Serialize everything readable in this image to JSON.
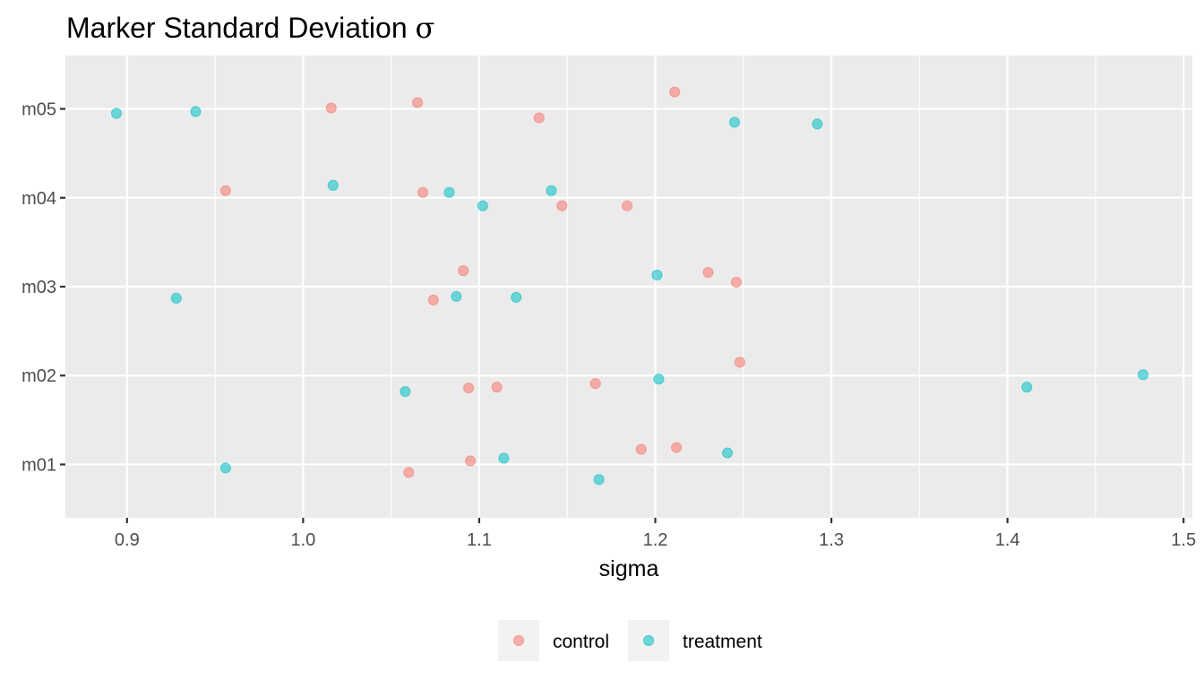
{
  "chart_data": {
    "type": "scatter",
    "title": "Marker Standard Deviation σ",
    "xlabel": "sigma",
    "ylabel": "",
    "xlim": [
      0.865,
      1.505
    ],
    "x_ticks": [
      "0.9",
      "1.0",
      "1.1",
      "1.2",
      "1.3",
      "1.4",
      "1.5"
    ],
    "categories": [
      "m01",
      "m02",
      "m03",
      "m04",
      "m05"
    ],
    "grid": true,
    "jittered": true,
    "legend_position": "bottom",
    "series": [
      {
        "name": "control",
        "color": "#F8766D",
        "points": [
          {
            "x": 1.06,
            "y": "m01"
          },
          {
            "x": 1.095,
            "y": "m01"
          },
          {
            "x": 1.192,
            "y": "m01"
          },
          {
            "x": 1.212,
            "y": "m01"
          },
          {
            "x": 1.094,
            "y": "m02"
          },
          {
            "x": 1.11,
            "y": "m02"
          },
          {
            "x": 1.166,
            "y": "m02"
          },
          {
            "x": 1.248,
            "y": "m02"
          },
          {
            "x": 1.074,
            "y": "m03"
          },
          {
            "x": 1.091,
            "y": "m03"
          },
          {
            "x": 1.23,
            "y": "m03"
          },
          {
            "x": 1.246,
            "y": "m03"
          },
          {
            "x": 0.956,
            "y": "m04"
          },
          {
            "x": 1.068,
            "y": "m04"
          },
          {
            "x": 1.147,
            "y": "m04"
          },
          {
            "x": 1.184,
            "y": "m04"
          },
          {
            "x": 1.016,
            "y": "m05"
          },
          {
            "x": 1.065,
            "y": "m05"
          },
          {
            "x": 1.134,
            "y": "m05"
          },
          {
            "x": 1.211,
            "y": "m05"
          }
        ]
      },
      {
        "name": "treatment",
        "color": "#00BFC4",
        "points": [
          {
            "x": 0.956,
            "y": "m01"
          },
          {
            "x": 1.114,
            "y": "m01"
          },
          {
            "x": 1.168,
            "y": "m01"
          },
          {
            "x": 1.241,
            "y": "m01"
          },
          {
            "x": 1.058,
            "y": "m02"
          },
          {
            "x": 1.202,
            "y": "m02"
          },
          {
            "x": 1.411,
            "y": "m02"
          },
          {
            "x": 1.477,
            "y": "m02"
          },
          {
            "x": 0.928,
            "y": "m03"
          },
          {
            "x": 1.087,
            "y": "m03"
          },
          {
            "x": 1.121,
            "y": "m03"
          },
          {
            "x": 1.201,
            "y": "m03"
          },
          {
            "x": 1.017,
            "y": "m04"
          },
          {
            "x": 1.083,
            "y": "m04"
          },
          {
            "x": 1.102,
            "y": "m04"
          },
          {
            "x": 1.141,
            "y": "m04"
          },
          {
            "x": 0.894,
            "y": "m05"
          },
          {
            "x": 0.939,
            "y": "m05"
          },
          {
            "x": 1.245,
            "y": "m05"
          },
          {
            "x": 1.292,
            "y": "m05"
          }
        ]
      }
    ]
  }
}
